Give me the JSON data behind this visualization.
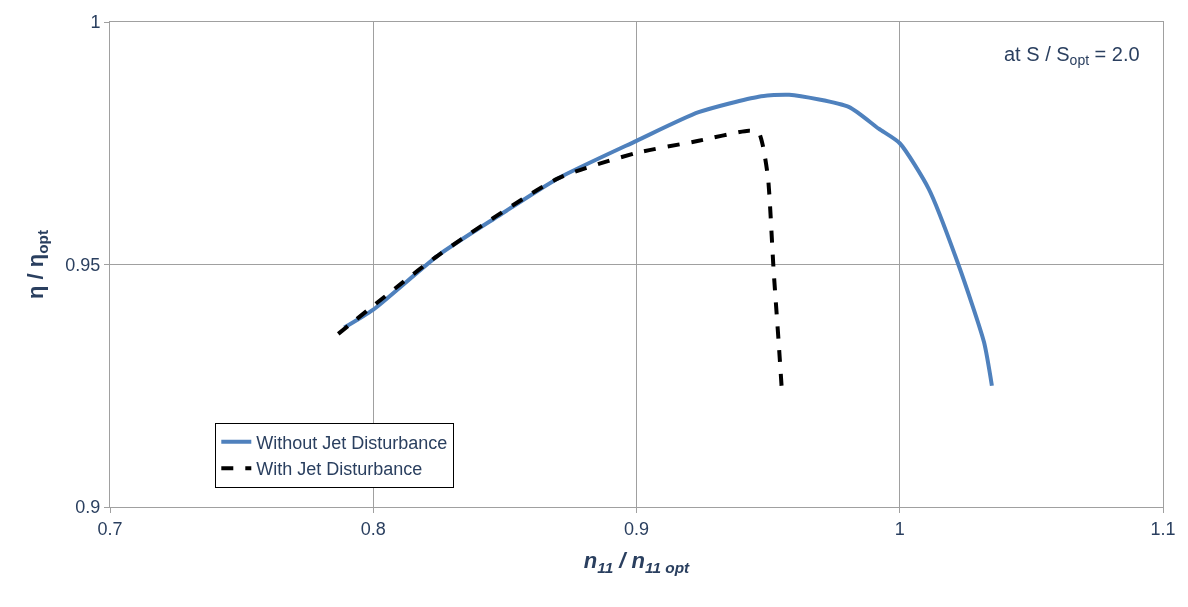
{
  "chart_data": {
    "type": "line",
    "xlabel": "n$_{11}$ / n$_{11 opt}$",
    "ylabel": "η / η$_{opt}$",
    "annotations": [
      "at S / S$_{opt}$ = 2.0"
    ],
    "xlim": [
      0.7,
      1.1
    ],
    "xticks": [
      0.7,
      0.8,
      0.9,
      1,
      1.1
    ],
    "ylim": [
      0.9,
      1
    ],
    "yticks": [
      0.9,
      0.95,
      1
    ],
    "grid": true,
    "legend": "bottom left",
    "marker": "none",
    "series": [
      {
        "name": "Without Jet Disturbance",
        "color": "#4f81bd",
        "line_style": "solid",
        "x": [
          0.789,
          0.8,
          0.8247,
          0.8475,
          0.87,
          0.9,
          0.9236,
          0.9464,
          0.958,
          0.9806,
          0.992,
          1.0,
          1.011,
          1.0224,
          1.032,
          1.035
        ],
        "values": [
          0.937,
          0.9407,
          0.9519,
          0.96,
          0.9677,
          0.9755,
          0.9814,
          0.9846,
          0.985,
          0.9825,
          0.978,
          0.975,
          0.9656,
          0.9498,
          0.934,
          0.925
        ]
      },
      {
        "name": "With Jet Disturbance",
        "color": "#000000",
        "line_style": "dashed",
        "x": [
          0.7867,
          0.8247,
          0.87,
          0.9,
          0.9236,
          0.9426,
          0.9464,
          0.948,
          0.95,
          0.9521,
          0.954,
          0.9551
        ],
        "values": [
          0.9357,
          0.9519,
          0.9677,
          0.973,
          0.9755,
          0.9776,
          0.9772,
          0.9745,
          0.9677,
          0.9487,
          0.934,
          0.925
        ]
      }
    ]
  }
}
